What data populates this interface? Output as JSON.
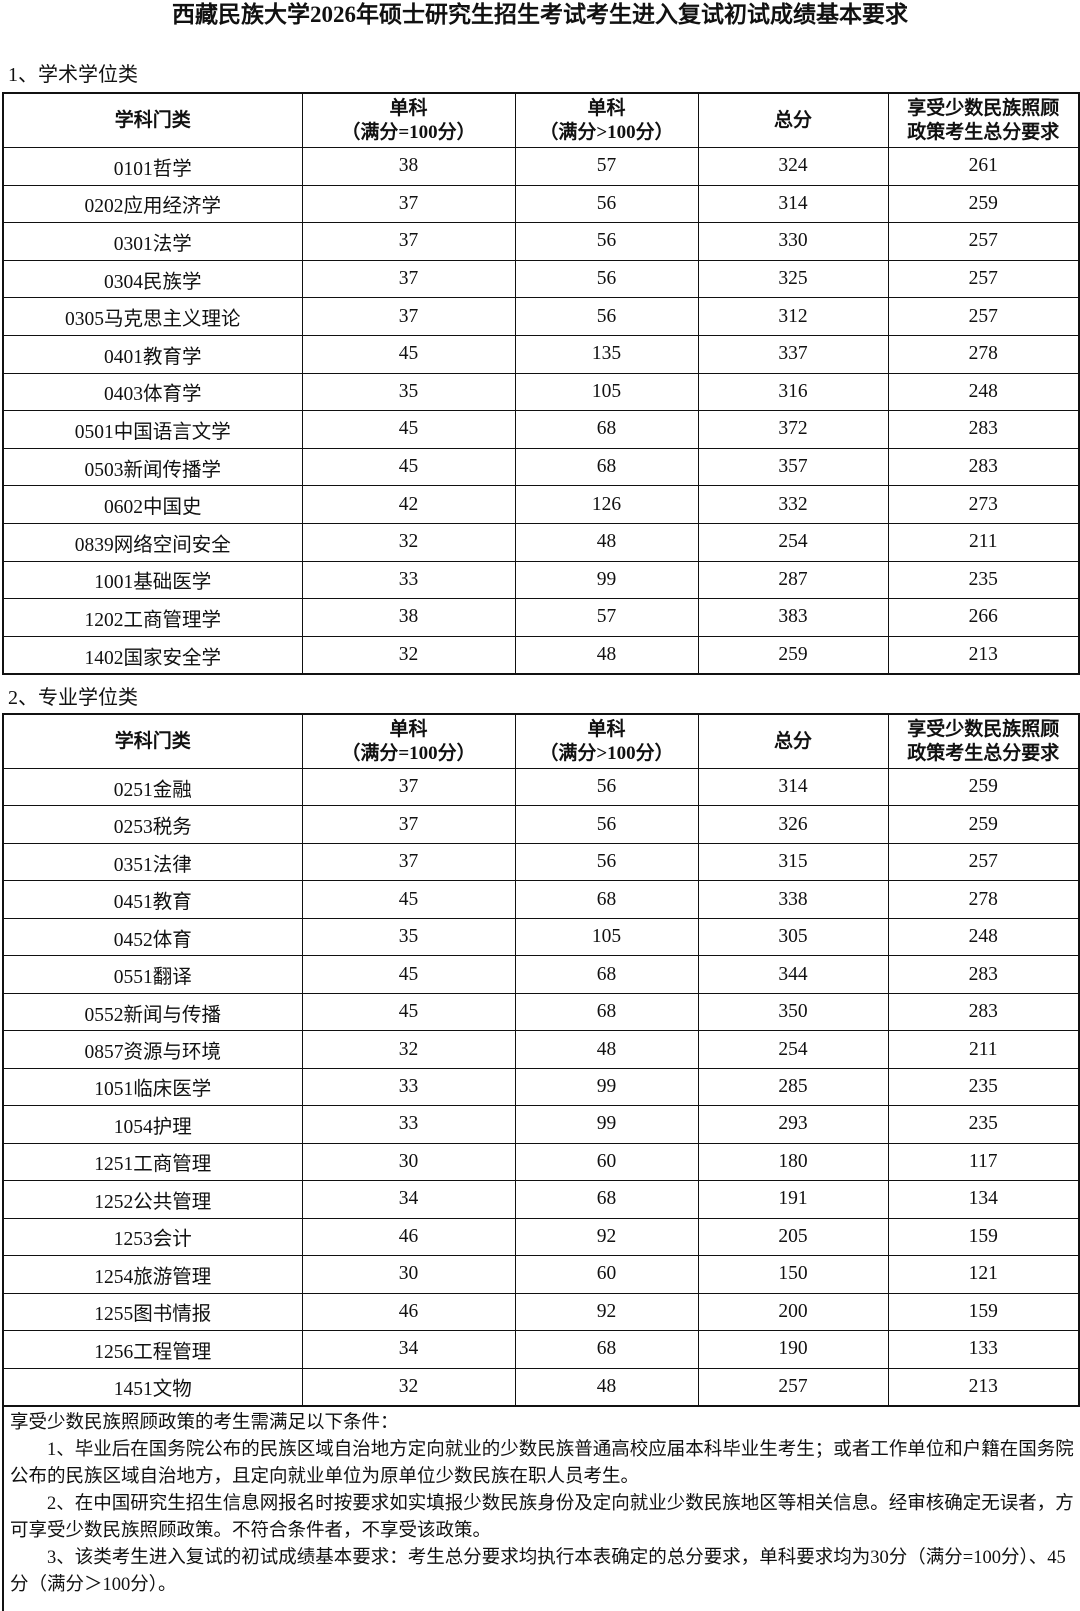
{
  "title": "西藏民族大学2026年硕士研究生招生考试考生进入复试初试成绩基本要求",
  "sections": [
    {
      "label": "1、学术学位类",
      "headers": [
        [
          "学科门类"
        ],
        [
          "单科",
          "（满分=100分）"
        ],
        [
          "单科",
          "（满分>100分）"
        ],
        [
          "总分"
        ],
        [
          "享受少数民族照顾",
          "政策考生总分要求"
        ]
      ],
      "rows": [
        [
          "0101哲学",
          38,
          57,
          324,
          261
        ],
        [
          "0202应用经济学",
          37,
          56,
          314,
          259
        ],
        [
          "0301法学",
          37,
          56,
          330,
          257
        ],
        [
          "0304民族学",
          37,
          56,
          325,
          257
        ],
        [
          "0305马克思主义理论",
          37,
          56,
          312,
          257
        ],
        [
          "0401教育学",
          45,
          135,
          337,
          278
        ],
        [
          "0403体育学",
          35,
          105,
          316,
          248
        ],
        [
          "0501中国语言文学",
          45,
          68,
          372,
          283
        ],
        [
          "0503新闻传播学",
          45,
          68,
          357,
          283
        ],
        [
          "0602中国史",
          42,
          126,
          332,
          273
        ],
        [
          "0839网络空间安全",
          32,
          48,
          254,
          211
        ],
        [
          "1001基础医学",
          33,
          99,
          287,
          235
        ],
        [
          "1202工商管理学",
          38,
          57,
          383,
          266
        ],
        [
          "1402国家安全学",
          32,
          48,
          259,
          213
        ]
      ]
    },
    {
      "label": "2、专业学位类",
      "headers": [
        [
          "学科门类"
        ],
        [
          "单科",
          "（满分=100分）"
        ],
        [
          "单科",
          "（满分>100分）"
        ],
        [
          "总分"
        ],
        [
          "享受少数民族照顾",
          "政策考生总分要求"
        ]
      ],
      "rows": [
        [
          "0251金融",
          37,
          56,
          314,
          259
        ],
        [
          "0253税务",
          37,
          56,
          326,
          259
        ],
        [
          "0351法律",
          37,
          56,
          315,
          257
        ],
        [
          "0451教育",
          45,
          68,
          338,
          278
        ],
        [
          "0452体育",
          35,
          105,
          305,
          248
        ],
        [
          "0551翻译",
          45,
          68,
          344,
          283
        ],
        [
          "0552新闻与传播",
          45,
          68,
          350,
          283
        ],
        [
          "0857资源与环境",
          32,
          48,
          254,
          211
        ],
        [
          "1051临床医学",
          33,
          99,
          285,
          235
        ],
        [
          "1054护理",
          33,
          99,
          293,
          235
        ],
        [
          "1251工商管理",
          30,
          60,
          180,
          117
        ],
        [
          "1252公共管理",
          34,
          68,
          191,
          134
        ],
        [
          "1253会计",
          46,
          92,
          205,
          159
        ],
        [
          "1254旅游管理",
          30,
          60,
          150,
          121
        ],
        [
          "1255图书情报",
          46,
          92,
          200,
          159
        ],
        [
          "1256工程管理",
          34,
          68,
          190,
          133
        ],
        [
          "1451文物",
          32,
          48,
          257,
          213
        ]
      ]
    }
  ],
  "notes": {
    "intro": "享受少数民族照顾政策的考生需满足以下条件：",
    "items": [
      "1、毕业后在国务院公布的民族区域自治地方定向就业的少数民族普通高校应届本科毕业生考生；或者工作单位和户籍在国务院公布的民族区域自治地方，且定向就业单位为原单位少数民族在职人员考生。",
      "2、在中国研究生招生信息网报名时按要求如实填报少数民族身份及定向就业少数民族地区等相关信息。经审核确定无误者，方可享受少数民族照顾政策。不符合条件者，不享受该政策。",
      "3、该类考生进入复试的初试成绩基本要求：考生总分要求均执行本表确定的总分要求，单科要求均为30分（满分=100分）、45分（满分＞100分）。"
    ]
  }
}
